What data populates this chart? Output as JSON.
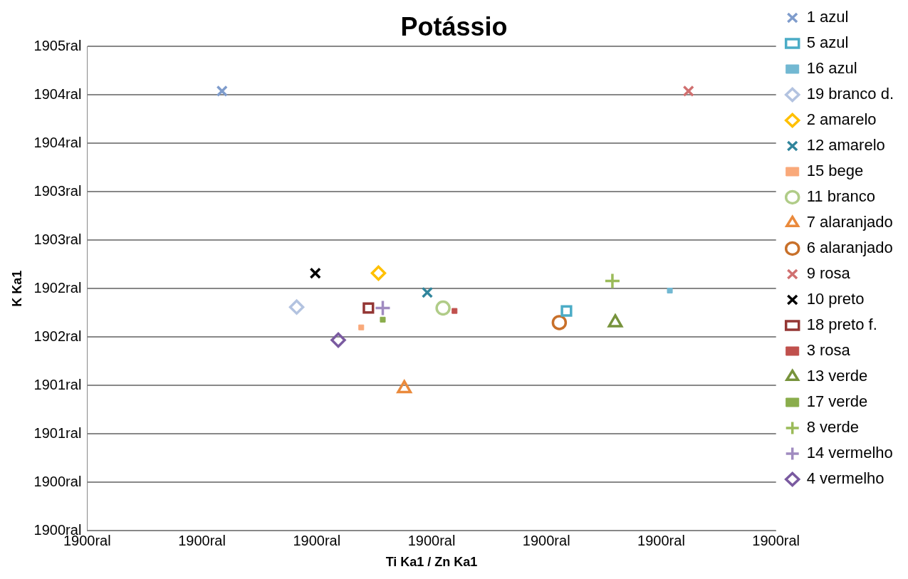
{
  "chart_data": {
    "type": "scatter",
    "title": "Potássio",
    "xlabel": "Ti Ka1 / Zn Ka1",
    "ylabel": "K Ka1",
    "xlim": [
      1900,
      1900.48
    ],
    "xticks": [
      {
        "value": 1900,
        "label": "1900ral"
      },
      {
        "value": 1900.08,
        "label": "1900ral"
      },
      {
        "value": 1900.16,
        "label": "1900ral"
      },
      {
        "value": 1900.24,
        "label": "1900ral"
      },
      {
        "value": 1900.32,
        "label": "1900ral"
      },
      {
        "value": 1900.4,
        "label": "1900ral"
      },
      {
        "value": 1900.48,
        "label": "1900ral"
      }
    ],
    "ylim": [
      1900,
      1905
    ],
    "yticks": [
      {
        "value": 1900,
        "label": "1900ral"
      },
      {
        "value": 1900.5,
        "label": "1900ral"
      },
      {
        "value": 1901,
        "label": "1901ral"
      },
      {
        "value": 1901.5,
        "label": "1901ral"
      },
      {
        "value": 1902,
        "label": "1902ral"
      },
      {
        "value": 1902.5,
        "label": "1902ral"
      },
      {
        "value": 1903,
        "label": "1903ral"
      },
      {
        "value": 1903.5,
        "label": "1903ral"
      },
      {
        "value": 1904,
        "label": "1904ral"
      },
      {
        "value": 1904.5,
        "label": "1904ral"
      },
      {
        "value": 1905,
        "label": "1905ral"
      }
    ],
    "grid": "y",
    "legend": "right",
    "series": [
      {
        "name": "1 azul",
        "color": "#7f9ccc",
        "marker": "cross",
        "x": [
          1900.094
        ],
        "values": [
          1904.54
        ]
      },
      {
        "name": "5 azul",
        "color": "#4bacc6",
        "marker": "square",
        "x": [
          1900.334
        ],
        "values": [
          1902.27
        ]
      },
      {
        "name": "16 azul",
        "color": "#72b8d2",
        "x": [
          1900.406
        ],
        "values": [
          1902.48
        ]
      },
      {
        "name": "19 branco d.",
        "color": "#b3c3e0",
        "marker": "diamond",
        "x": [
          1900.146
        ],
        "values": [
          1902.31
        ]
      },
      {
        "name": "2 amarelo",
        "color": "#ffc000",
        "marker": "diamond",
        "x": [
          1900.203
        ],
        "values": [
          1902.66
        ]
      },
      {
        "name": "12 amarelo",
        "color": "#31859c",
        "marker": "cross",
        "x": [
          1900.237
        ],
        "values": [
          1902.46
        ]
      },
      {
        "name": "15 bege",
        "color": "#f9a97a",
        "x": [
          1900.191
        ],
        "values": [
          1902.1
        ]
      },
      {
        "name": "11 branco",
        "color": "#b0cc88",
        "marker": "circle",
        "x": [
          1900.248
        ],
        "values": [
          1902.3
        ]
      },
      {
        "name": "7 alaranjado",
        "color": "#ea8a3c",
        "marker": "triangle",
        "x": [
          1900.221
        ],
        "values": [
          1901.47
        ]
      },
      {
        "name": "6 alaranjado",
        "color": "#c8702a",
        "marker": "circle",
        "x": [
          1900.329
        ],
        "values": [
          1902.15
        ]
      },
      {
        "name": "9 rosa",
        "color": "#d07070",
        "marker": "cross",
        "x": [
          1900.419
        ],
        "values": [
          1904.54
        ]
      },
      {
        "name": "10 preto",
        "color": "#000000",
        "marker": "cross",
        "x": [
          1900.159
        ],
        "values": [
          1902.66
        ]
      },
      {
        "name": "18 preto f.",
        "color": "#943634",
        "marker": "square",
        "x": [
          1900.196
        ],
        "values": [
          1902.3
        ]
      },
      {
        "name": "3 rosa",
        "color": "#c0504d",
        "x": [
          1900.256
        ],
        "values": [
          1902.27
        ]
      },
      {
        "name": "13 verde",
        "color": "#77933c",
        "marker": "triangle",
        "x": [
          1900.368
        ],
        "values": [
          1902.15
        ]
      },
      {
        "name": "17 verde",
        "color": "#8aad4c",
        "x": [
          1900.206
        ],
        "values": [
          1902.18
        ]
      },
      {
        "name": "8 verde",
        "color": "#9bbb59",
        "marker": "plus",
        "x": [
          1900.366
        ],
        "values": [
          1902.58
        ]
      },
      {
        "name": "14 vermelho",
        "color": "#a08bc0",
        "marker": "plus",
        "x": [
          1900.206
        ],
        "values": [
          1902.3
        ]
      },
      {
        "name": "4 vermelho",
        "color": "#7a5aa0",
        "marker": "diamond",
        "x": [
          1900.175
        ],
        "values": [
          1901.97
        ]
      }
    ]
  }
}
